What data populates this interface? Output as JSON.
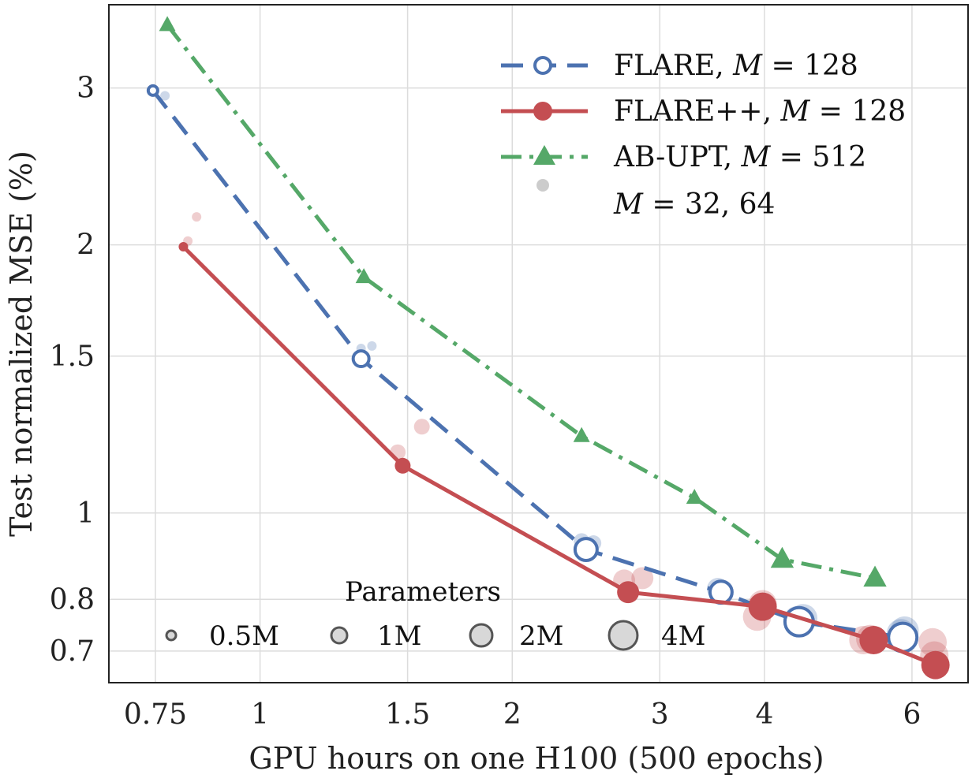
{
  "chart_data": {
    "type": "line",
    "xscale": "log",
    "yscale": "log",
    "xlabel": "GPU hours on one H100 (500 epochs)",
    "ylabel": "Test normalized MSE (%)",
    "xlim": [
      0.66,
      7.0
    ],
    "ylim": [
      0.645,
      3.72
    ],
    "xticks": [
      0.75,
      1,
      1.5,
      2,
      3,
      4,
      6
    ],
    "xtick_labels": [
      "0.75",
      "1",
      "1.5",
      "2",
      "3",
      "4",
      "6"
    ],
    "yticks": [
      0.7,
      0.8,
      1,
      1.5,
      2,
      3
    ],
    "ytick_labels": [
      "0.7",
      "0.8",
      "1",
      "1.5",
      "2",
      "3"
    ],
    "grid": true,
    "series": [
      {
        "name": "FLARE, M = 128",
        "name_parts": [
          "FLARE, ",
          "M",
          " = 128"
        ],
        "color": "#4c72b0",
        "line_style": "dashed",
        "marker": "open-circle",
        "x": [
          0.745,
          1.32,
          2.45,
          3.55,
          4.4,
          5.85
        ],
        "y": [
          2.98,
          1.49,
          0.91,
          0.815,
          0.755,
          0.725
        ],
        "params_millions": [
          0.5,
          1,
          2,
          2,
          4,
          4
        ]
      },
      {
        "name": "FLARE++, M = 128",
        "name_parts": [
          "FLARE++, ",
          "M",
          " = 128"
        ],
        "color": "#c44e52",
        "line_style": "solid",
        "marker": "filled-circle",
        "x": [
          0.81,
          1.48,
          2.75,
          3.98,
          5.4,
          6.4
        ],
        "y": [
          1.99,
          1.13,
          0.815,
          0.785,
          0.72,
          0.675
        ],
        "params_millions": [
          0.5,
          1,
          2,
          4,
          4,
          4
        ]
      },
      {
        "name": "AB-UPT, M = 512",
        "name_parts": [
          "AB-UPT, ",
          "M",
          " = 512"
        ],
        "color": "#55a868",
        "line_style": "dashdot",
        "marker": "triangle",
        "x": [
          0.775,
          1.33,
          2.42,
          3.3,
          4.2,
          5.42
        ],
        "y": [
          3.53,
          1.84,
          1.22,
          1.04,
          0.887,
          0.845
        ],
        "params_millions": [
          1,
          1,
          1,
          1,
          2,
          2
        ]
      }
    ],
    "secondary_points_label_parts": [
      "M",
      " = 32, 64"
    ],
    "secondary_points": [
      {
        "series": "FLARE, M = 128",
        "color": "#4c72b0",
        "x": [
          0.77,
          1.32,
          1.36,
          2.42,
          2.5,
          3.52,
          3.55,
          4.38,
          4.45,
          5.82,
          5.88
        ],
        "y": [
          2.94,
          1.53,
          1.54,
          0.93,
          0.925,
          0.822,
          0.818,
          0.758,
          0.762,
          0.733,
          0.738
        ],
        "params_millions": [
          0.5,
          0.5,
          0.5,
          1,
          1,
          2,
          2,
          4,
          4,
          4,
          4
        ]
      },
      {
        "series": "FLARE++, M = 128",
        "color": "#c44e52",
        "x": [
          0.82,
          0.84,
          1.46,
          1.56,
          2.72,
          2.86,
          3.92,
          3.98,
          5.25,
          5.35,
          6.35,
          6.38
        ],
        "y": [
          2.02,
          2.15,
          1.17,
          1.25,
          0.84,
          0.845,
          0.765,
          0.79,
          0.72,
          0.722,
          0.716,
          0.692
        ],
        "params_millions": [
          0.5,
          0.5,
          1,
          1,
          2,
          2,
          4,
          4,
          4,
          4,
          4,
          4
        ]
      }
    ],
    "size_legend": {
      "title": "Parameters",
      "labels": [
        "0.5M",
        "1M",
        "2M",
        "4M"
      ],
      "values_millions": [
        0.5,
        1,
        2,
        4
      ]
    },
    "legend_position": "top-right"
  }
}
